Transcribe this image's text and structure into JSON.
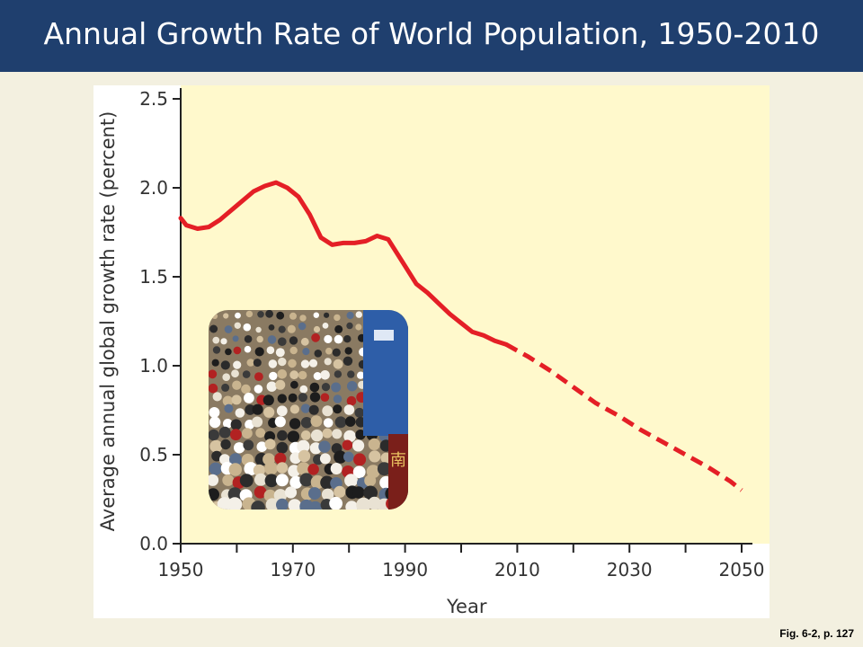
{
  "header": {
    "title": "Annual Growth Rate of World Population, 1950-2010"
  },
  "caption": "Fig. 6-2, p. 127",
  "colors": {
    "header_bg": "#1f3f6e",
    "slide_bg": "#f3f0e0",
    "plot_bg": "#fff9cc",
    "series": "#e41f26"
  },
  "photo": {
    "icon": "crowd-photo",
    "sign_text": "南"
  },
  "chart_data": {
    "type": "line",
    "xlabel": "Year",
    "ylabel": "Average annual global growth rate (percent)",
    "xlim": [
      1950,
      2050
    ],
    "ylim": [
      0.0,
      2.5
    ],
    "x_ticks": [
      "1950",
      "1970",
      "1990",
      "2010",
      "2030",
      "2050"
    ],
    "y_ticks": [
      "0.0",
      "0.5",
      "1.0",
      "1.5",
      "2.0",
      "2.5"
    ],
    "grid": false,
    "legend": "none",
    "series": [
      {
        "style": "solid",
        "x": [
          1950,
          1951,
          1953,
          1955,
          1957,
          1960,
          1963,
          1965,
          1967,
          1969,
          1971,
          1973,
          1975,
          1977,
          1979,
          1981,
          1983,
          1985,
          1987,
          1990,
          1992,
          1994,
          1996,
          1998,
          2000,
          2002,
          2004,
          2006,
          2008
        ],
        "y": [
          1.83,
          1.79,
          1.77,
          1.78,
          1.82,
          1.9,
          1.98,
          2.01,
          2.03,
          2.0,
          1.95,
          1.85,
          1.72,
          1.68,
          1.69,
          1.69,
          1.7,
          1.73,
          1.71,
          1.56,
          1.46,
          1.41,
          1.35,
          1.29,
          1.24,
          1.19,
          1.17,
          1.14,
          1.12
        ]
      },
      {
        "style": "dashed",
        "x": [
          2008,
          2012,
          2016,
          2020,
          2024,
          2028,
          2032,
          2036,
          2040,
          2044,
          2048,
          2050
        ],
        "y": [
          1.12,
          1.05,
          0.97,
          0.88,
          0.79,
          0.72,
          0.64,
          0.57,
          0.5,
          0.43,
          0.35,
          0.3
        ]
      }
    ]
  }
}
